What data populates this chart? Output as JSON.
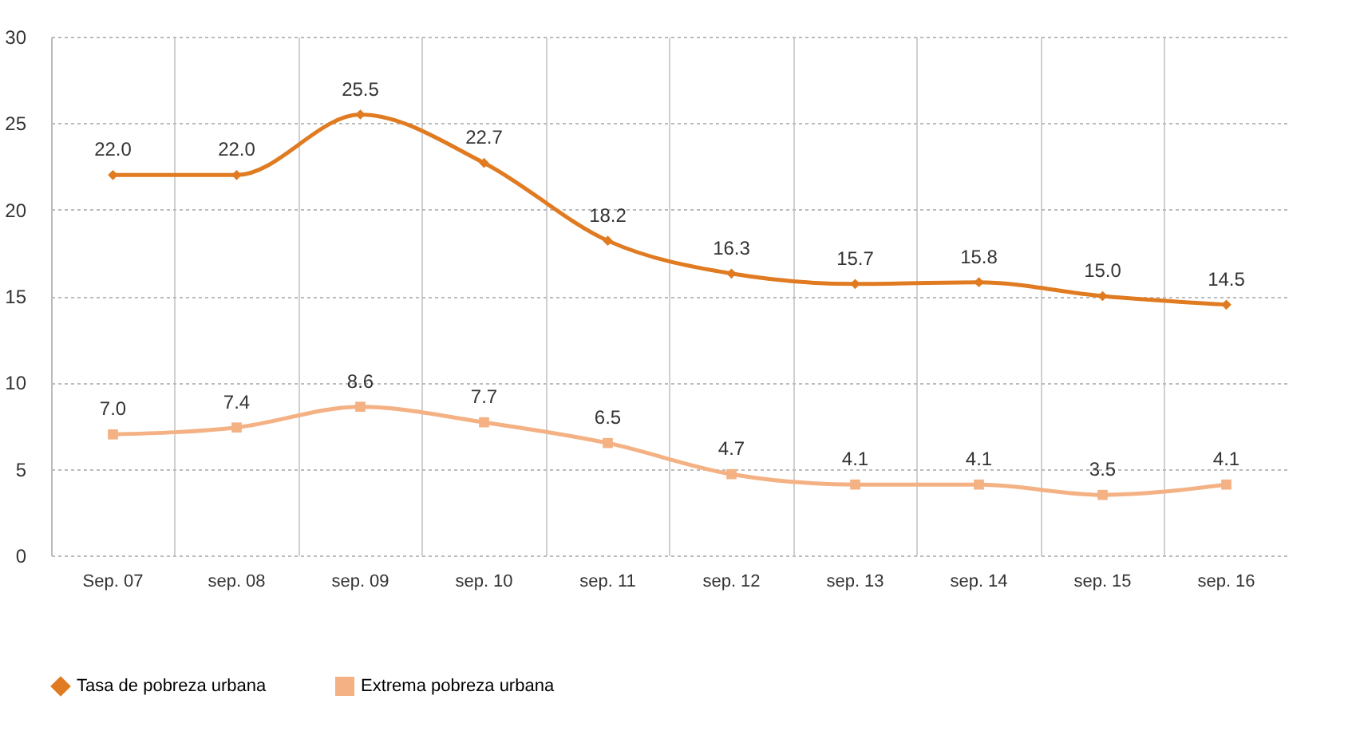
{
  "chart_data": {
    "type": "line",
    "categories": [
      "Sep. 07",
      "sep. 08",
      "sep. 09",
      "sep. 10",
      "sep. 11",
      "sep. 12",
      "sep. 13",
      "sep. 14",
      "sep. 15",
      "sep. 16"
    ],
    "series": [
      {
        "name": "Tasa de pobreza urbana",
        "color": "#e07b22",
        "marker": "diamond",
        "values": [
          22.0,
          22.0,
          25.5,
          22.7,
          18.2,
          16.3,
          15.7,
          15.8,
          15.0,
          14.5
        ],
        "value_labels": [
          "22.0",
          "22.0",
          "25.5",
          "22.7",
          "18.2",
          "16.3",
          "15.7",
          "15.8",
          "15.0",
          "14.5"
        ]
      },
      {
        "name": "Extrema pobreza urbana",
        "color": "#f4b183",
        "marker": "square",
        "values": [
          7.0,
          7.4,
          8.6,
          7.7,
          6.5,
          4.7,
          4.1,
          4.1,
          3.5,
          4.1
        ],
        "value_labels": [
          "7.0",
          "7.4",
          "8.6",
          "7.7",
          "6.5",
          "4.7",
          "4.1",
          "4.1",
          "3.5",
          "4.1"
        ]
      }
    ],
    "ylim": [
      0,
      30
    ],
    "yticks": [
      0,
      5,
      10,
      15,
      20,
      25,
      30
    ],
    "grid": true,
    "legend": "bottom",
    "line_style": "solid"
  }
}
